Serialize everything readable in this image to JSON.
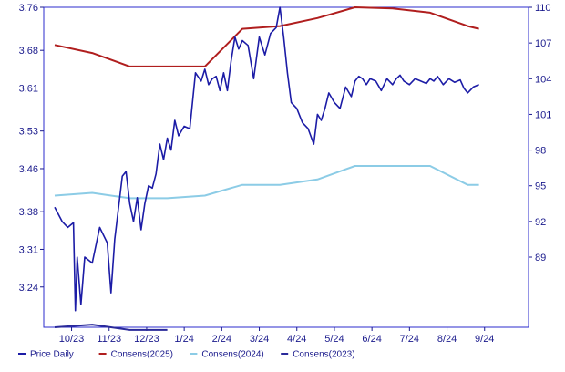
{
  "chart_data": {
    "type": "line",
    "title": "",
    "xlabel": "",
    "ylabel_left": "",
    "ylabel_right": "",
    "x_ticks": [
      "10/23",
      "11/23",
      "12/23",
      "1/24",
      "2/24",
      "3/24",
      "4/24",
      "5/24",
      "6/24",
      "7/24",
      "8/24",
      "9/24"
    ],
    "left_axis": {
      "ticks": [
        3.24,
        3.31,
        3.38,
        3.46,
        3.53,
        3.61,
        3.68,
        3.76
      ],
      "range": [
        3.165,
        3.76
      ]
    },
    "right_axis": {
      "ticks": [
        89,
        92,
        95,
        98,
        101,
        104,
        107,
        110
      ],
      "range": [
        83.1,
        110
      ]
    },
    "grid": false,
    "legend_position": "bottom",
    "colors": {
      "price": "#1c1ca6",
      "cons2025": "#b01e1e",
      "cons2024": "#8ccce6",
      "cons2023": "#2a2a9a",
      "axis": "#1a1a8c"
    },
    "series": [
      {
        "name": "Price Daily",
        "axis": "right",
        "x": [
          0.0,
          0.2,
          0.35,
          0.5,
          0.55,
          0.6,
          0.7,
          0.8,
          1.0,
          1.2,
          1.4,
          1.5,
          1.6,
          1.8,
          1.9,
          2.0,
          2.1,
          2.2,
          2.3,
          2.4,
          2.5,
          2.6,
          2.7,
          2.8,
          2.9,
          3.0,
          3.1,
          3.2,
          3.3,
          3.45,
          3.6,
          3.75,
          3.9,
          4.0,
          4.1,
          4.2,
          4.3,
          4.4,
          4.5,
          4.6,
          4.7,
          4.8,
          4.9,
          5.0,
          5.15,
          5.3,
          5.45,
          5.6,
          5.75,
          5.9,
          6.0,
          6.1,
          6.2,
          6.3,
          6.45,
          6.6,
          6.75,
          6.9,
          7.0,
          7.1,
          7.2,
          7.3,
          7.45,
          7.6,
          7.75,
          7.9,
          8.0,
          8.1,
          8.2,
          8.3,
          8.4,
          8.55,
          8.7,
          8.85,
          9.0,
          9.1,
          9.2,
          9.3,
          9.45,
          9.6,
          9.75,
          9.9,
          10.0,
          10.1,
          10.2,
          10.35,
          10.5,
          10.65,
          10.8,
          10.9,
          11.0,
          11.15,
          11.3
        ],
        "values": [
          93.2,
          92.0,
          91.5,
          91.9,
          84.5,
          89.0,
          85.0,
          89.0,
          88.5,
          91.5,
          90.2,
          86.0,
          90.5,
          95.8,
          96.2,
          93.5,
          92.0,
          94.0,
          91.3,
          93.5,
          95.0,
          94.8,
          96.0,
          98.5,
          97.2,
          99.0,
          98.0,
          100.5,
          99.2,
          100.0,
          99.8,
          104.5,
          103.8,
          104.8,
          103.5,
          104.0,
          104.2,
          103.0,
          104.5,
          103.0,
          105.5,
          107.5,
          106.5,
          107.2,
          106.8,
          104.0,
          107.5,
          106.0,
          107.8,
          108.3,
          110.0,
          107.5,
          104.5,
          102.0,
          101.5,
          100.3,
          99.8,
          98.5,
          101.0,
          100.5,
          101.5,
          102.8,
          102.0,
          101.5,
          103.3,
          102.5,
          103.8,
          104.2,
          104.0,
          103.5,
          104.0,
          103.8,
          103.0,
          104.0,
          103.5,
          104.0,
          104.3,
          103.8,
          103.5,
          104.0,
          103.8,
          103.6,
          104.0,
          103.8,
          104.2,
          103.5,
          104.0,
          103.7,
          103.9,
          103.2,
          102.8,
          103.3,
          103.5
        ]
      },
      {
        "name": "Consens(2025)",
        "axis": "left",
        "x": [
          0.0,
          1.0,
          2.0,
          3.0,
          4.0,
          5.0,
          6.0,
          7.0,
          8.0,
          9.0,
          10.0,
          11.0,
          11.3
        ],
        "values": [
          3.69,
          3.675,
          3.65,
          3.65,
          3.65,
          3.72,
          3.725,
          3.74,
          3.76,
          3.758,
          3.75,
          3.725,
          3.72
        ]
      },
      {
        "name": "Consens(2024)",
        "axis": "left",
        "x": [
          0.0,
          1.0,
          2.0,
          3.0,
          4.0,
          5.0,
          6.0,
          7.0,
          8.0,
          9.0,
          10.0,
          11.0,
          11.3
        ],
        "values": [
          3.41,
          3.415,
          3.405,
          3.405,
          3.41,
          3.43,
          3.43,
          3.44,
          3.465,
          3.465,
          3.465,
          3.43,
          3.43
        ]
      },
      {
        "name": "Consens(2023)",
        "axis": "left",
        "x": [
          0.0,
          1.0,
          2.0,
          3.0
        ],
        "values": [
          3.165,
          3.17,
          3.16,
          3.16
        ]
      }
    ]
  }
}
